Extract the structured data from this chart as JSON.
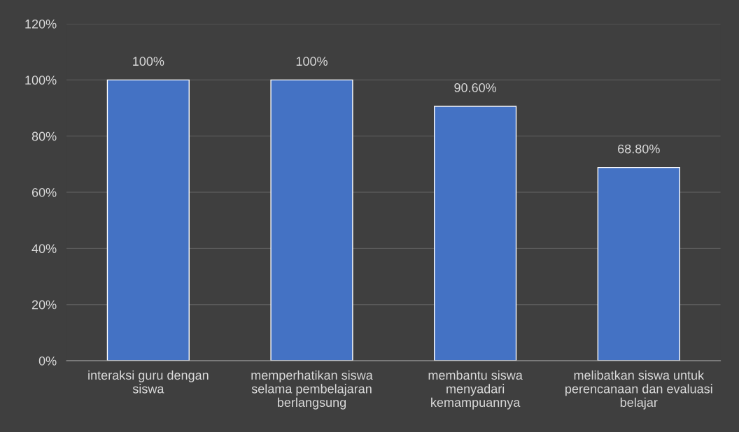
{
  "chart_data": {
    "type": "bar",
    "categories": [
      "interaksi guru dengan\nsiswa",
      "memperhatikan siswa\nselama pembelajaran\nberlangsung",
      "membantu siswa\nmenyadari\nkemampuannya",
      "melibatkan siswa untuk\nperencanaan dan evaluasi\nbelajar"
    ],
    "values": [
      100,
      100,
      90.6,
      68.8
    ],
    "value_labels": [
      "100%",
      "100%",
      "90.60%",
      "68.80%"
    ],
    "color": "#4472c4",
    "ylim": [
      0,
      120
    ],
    "yticks": [
      {
        "value": 0,
        "label": "0%"
      },
      {
        "value": 20,
        "label": "20%"
      },
      {
        "value": 40,
        "label": "40%"
      },
      {
        "value": 60,
        "label": "60%"
      },
      {
        "value": 80,
        "label": "80%"
      },
      {
        "value": 100,
        "label": "100%"
      },
      {
        "value": 120,
        "label": "120%"
      }
    ],
    "grid": "y"
  }
}
